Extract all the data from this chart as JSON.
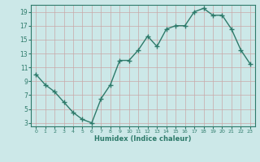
{
  "x": [
    0,
    1,
    2,
    3,
    4,
    5,
    6,
    7,
    8,
    9,
    10,
    11,
    12,
    13,
    14,
    15,
    16,
    17,
    18,
    19,
    20,
    21,
    22,
    23
  ],
  "y": [
    10,
    8.5,
    7.5,
    6,
    4.5,
    3.5,
    3,
    6.5,
    8.5,
    12,
    12,
    13.5,
    15.5,
    14,
    16.5,
    17,
    17,
    19,
    19.5,
    18.5,
    18.5,
    16.5,
    13.5,
    11.5
  ],
  "line_color": "#2d7a6a",
  "bg_color": "#cce8e8",
  "grid_color": "#b8d4d4",
  "xlabel": "Humidex (Indice chaleur)",
  "xlim": [
    -0.5,
    23.5
  ],
  "ylim": [
    2.5,
    20.0
  ],
  "yticks": [
    3,
    5,
    7,
    9,
    11,
    13,
    15,
    17,
    19
  ],
  "xticks": [
    0,
    1,
    2,
    3,
    4,
    5,
    6,
    7,
    8,
    9,
    10,
    11,
    12,
    13,
    14,
    15,
    16,
    17,
    18,
    19,
    20,
    21,
    22,
    23
  ],
  "marker": "+",
  "markersize": 4,
  "linewidth": 1.0
}
